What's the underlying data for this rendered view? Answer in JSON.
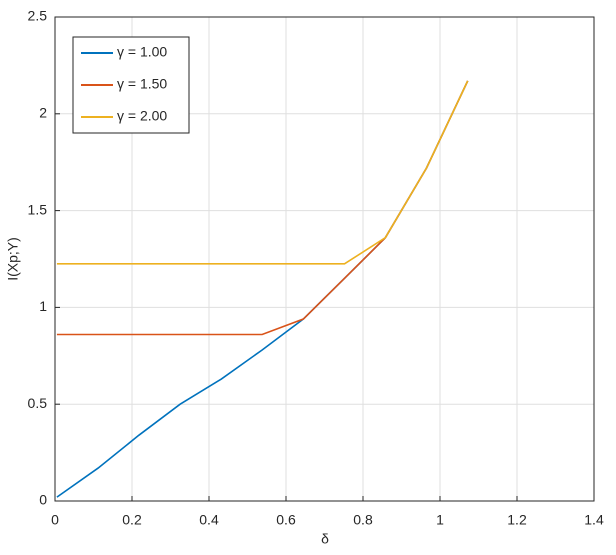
{
  "chart_data": {
    "type": "line",
    "xlabel": "δ",
    "ylabel": "I(Xp;Y)",
    "x": [
      0.005,
      0.112,
      0.218,
      0.325,
      0.432,
      0.538,
      0.645,
      0.752,
      0.858,
      0.965,
      1.072
    ],
    "series": [
      {
        "name": "γ = 1.00",
        "color": "#0072BD",
        "values": [
          0.02,
          0.17,
          0.34,
          0.5,
          0.63,
          0.78,
          0.94,
          1.15,
          1.36,
          1.72,
          2.17
        ]
      },
      {
        "name": "γ = 1.50",
        "color": "#D95319",
        "values": [
          0.86,
          0.86,
          0.86,
          0.86,
          0.86,
          0.86,
          0.94,
          1.15,
          1.36,
          1.72,
          2.17
        ]
      },
      {
        "name": "γ = 2.00",
        "color": "#EDB120",
        "values": [
          1.225,
          1.225,
          1.225,
          1.225,
          1.225,
          1.225,
          1.225,
          1.225,
          1.36,
          1.72,
          2.17
        ]
      }
    ],
    "xlim": [
      0,
      1.4
    ],
    "xticks": [
      0,
      0.2,
      0.4,
      0.6,
      0.8,
      1,
      1.2,
      1.4
    ],
    "ylim": [
      0,
      2.5
    ],
    "yticks": [
      0,
      0.5,
      1,
      1.5,
      2,
      2.5
    ],
    "grid": true,
    "legend": "upper-left"
  }
}
